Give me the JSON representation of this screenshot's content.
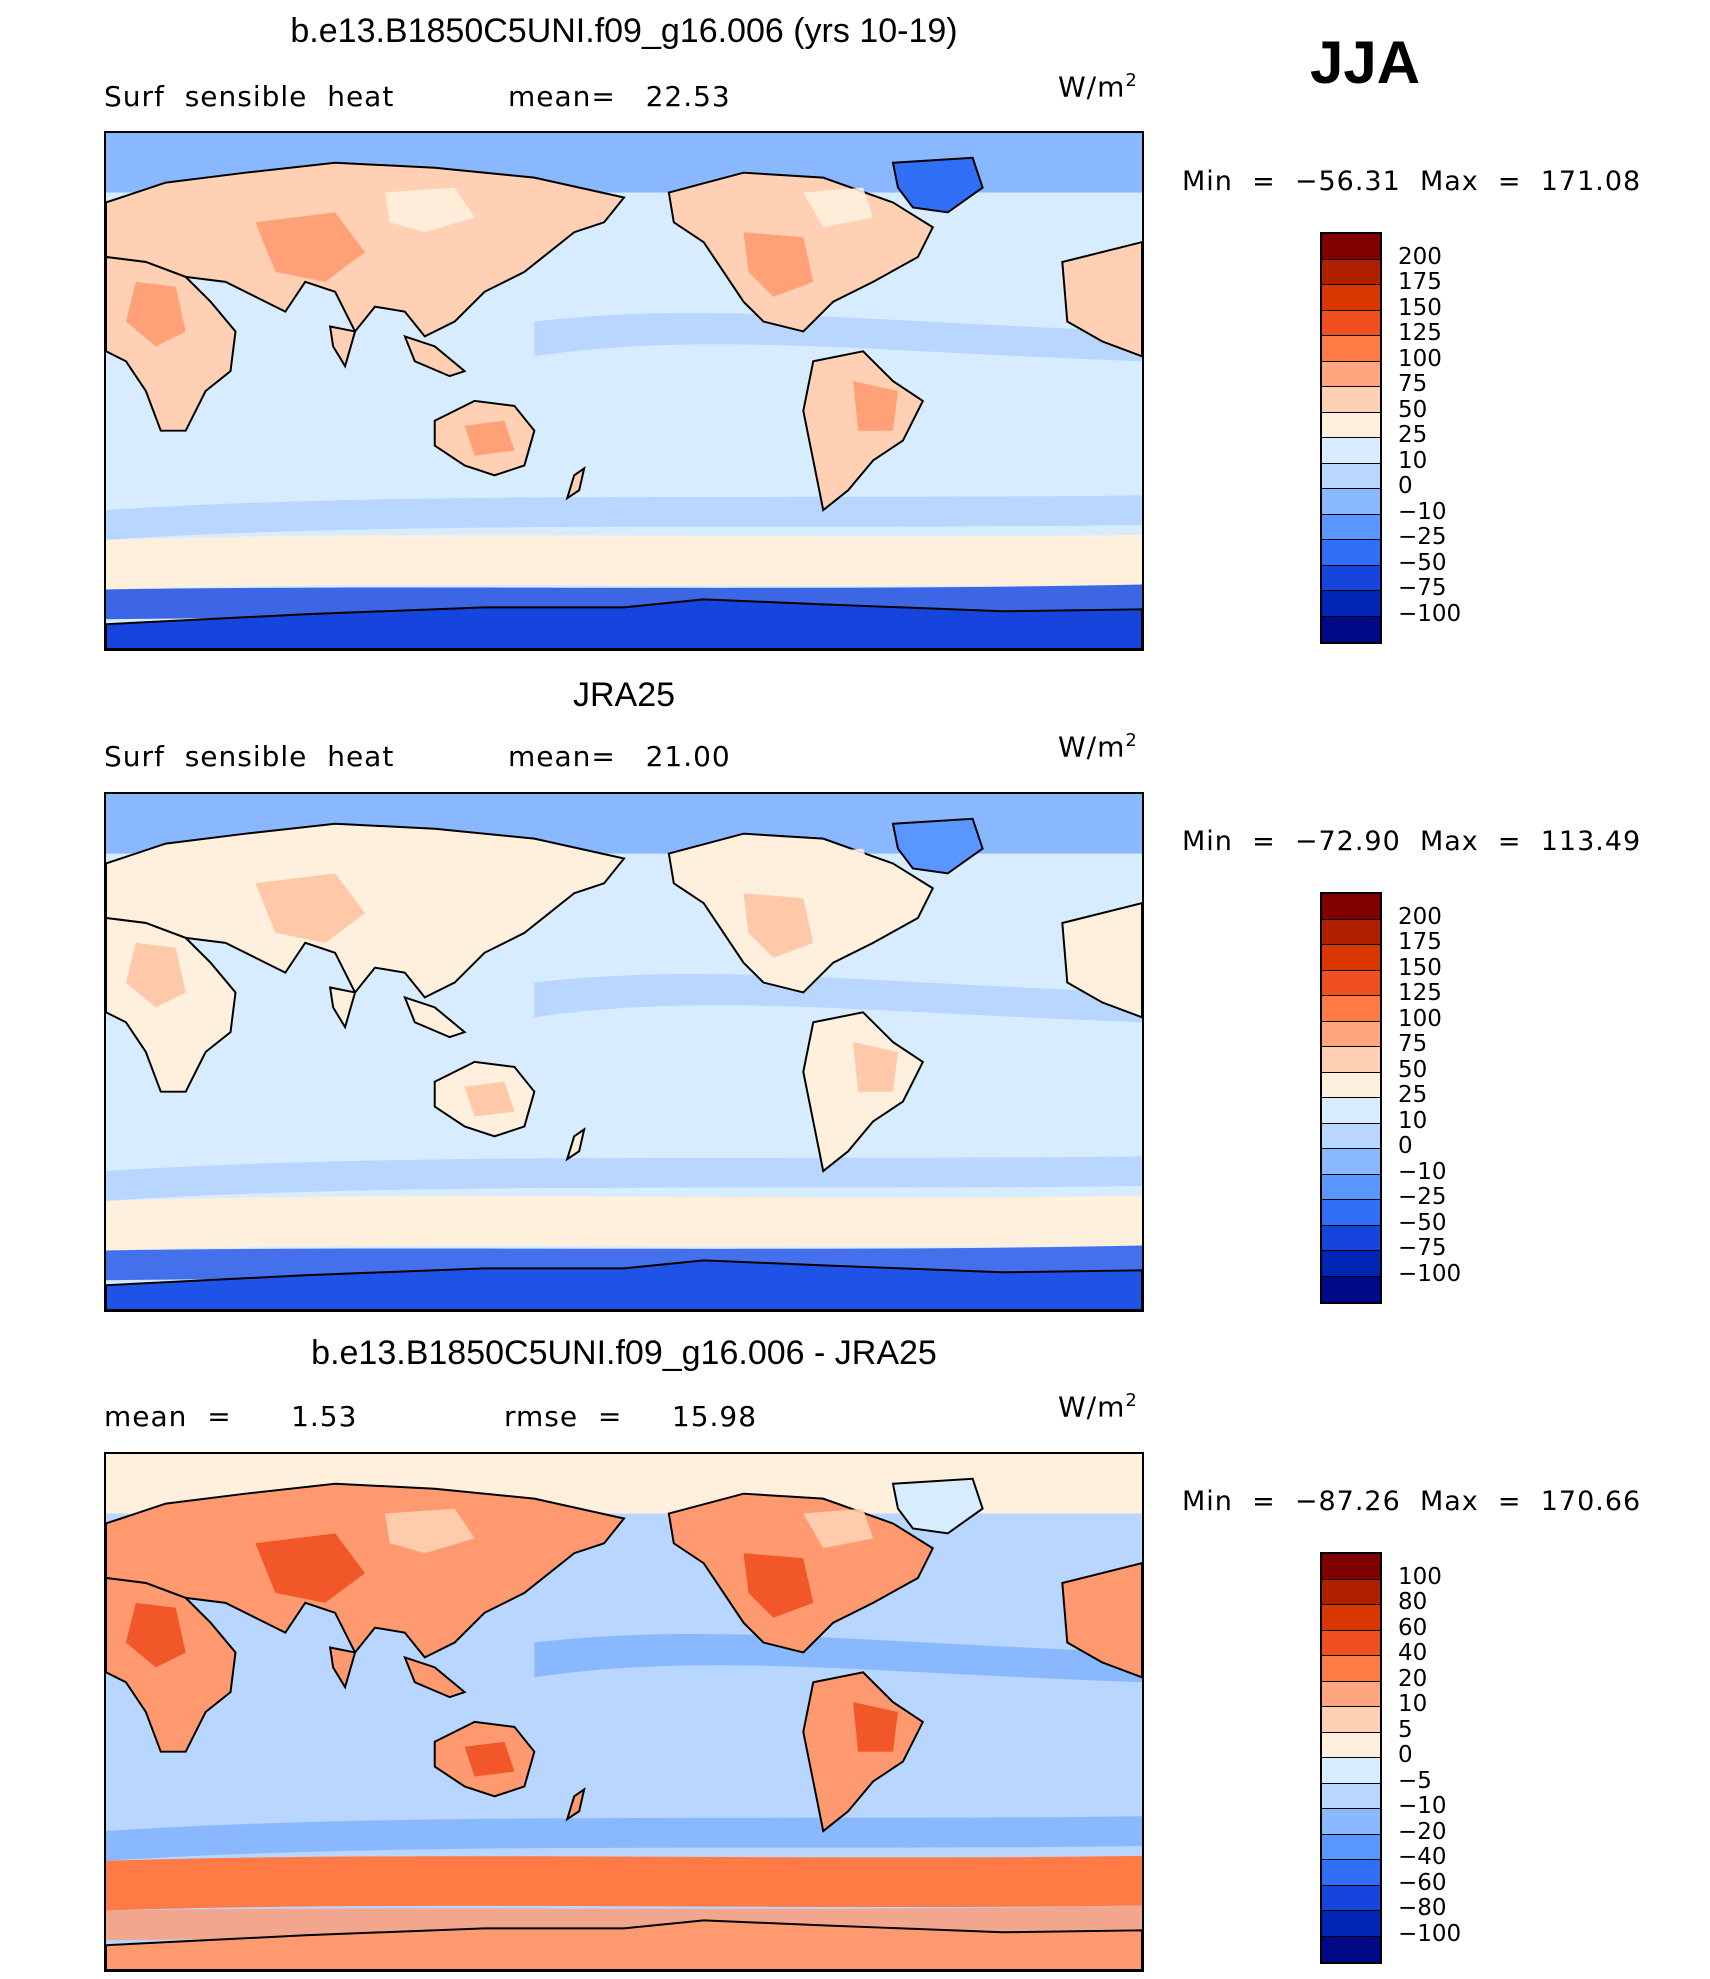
{
  "season": "JJA",
  "panels": [
    {
      "id": "model",
      "title": "b.e13.B1850C5UNI.f09_g16.006 (yrs 10-19)",
      "left_label": "Surf  sensible  heat",
      "mid_label": "mean=   22.53",
      "units": "W/m",
      "units_exp": "2",
      "minmax": "Min  =  −56.31  Max  =  171.08",
      "colorbar": {
        "levels": [
          "200",
          "175",
          "150",
          "125",
          "100",
          "75",
          "50",
          "25",
          "10",
          "0",
          "−10",
          "−25",
          "−50",
          "−75",
          "−100"
        ],
        "colors": [
          "#800000",
          "#b02000",
          "#d83800",
          "#f05020",
          "#ff7a45",
          "#ffa57f",
          "#ffd0b4",
          "#fff0de",
          "#d8ecff",
          "#b8d6ff",
          "#8ab8ff",
          "#5a96ff",
          "#2f6ef5",
          "#1545dd",
          "#0024b4",
          "#000a88"
        ]
      },
      "regions": {
        "land": "#ffd0b4",
        "land_hot": "#ff9a70",
        "land_cool": "#fff0de",
        "ocean": "#d8ecff",
        "ocean_band": "#b8d6ff",
        "north_ocean": "#8ab8ff",
        "greenland": "#2f6ef5",
        "south_band": "#fff0de",
        "antarctic": "#1545dd"
      }
    },
    {
      "id": "obs",
      "title": "JRA25",
      "left_label": "Surf  sensible  heat",
      "mid_label": "mean=   21.00",
      "units": "W/m",
      "units_exp": "2",
      "minmax": "Min  =  −72.90  Max  =  113.49",
      "colorbar": {
        "levels": [
          "200",
          "175",
          "150",
          "125",
          "100",
          "75",
          "50",
          "25",
          "10",
          "0",
          "−10",
          "−25",
          "−50",
          "−75",
          "−100"
        ],
        "colors": [
          "#800000",
          "#b02000",
          "#d83800",
          "#f05020",
          "#ff7a45",
          "#ffa57f",
          "#ffd0b4",
          "#fff0de",
          "#d8ecff",
          "#b8d6ff",
          "#8ab8ff",
          "#5a96ff",
          "#2f6ef5",
          "#1545dd",
          "#0024b4",
          "#000a88"
        ]
      },
      "regions": {
        "land": "#fff0de",
        "land_hot": "#ffc3a3",
        "land_cool": "#fff0de",
        "ocean": "#d8ecff",
        "ocean_band": "#b8d6ff",
        "north_ocean": "#8ab8ff",
        "greenland": "#5a96ff",
        "south_band": "#fff0de",
        "antarctic": "#1f52e6"
      }
    },
    {
      "id": "diff",
      "title": "b.e13.B1850C5UNI.f09_g16.006 - JRA25",
      "left_label": "mean  =      1.53",
      "mid_label": "rmse  =     15.98",
      "units": "W/m",
      "units_exp": "2",
      "minmax": "Min  =  −87.26  Max  =  170.66",
      "colorbar": {
        "levels": [
          "100",
          "80",
          "60",
          "40",
          "20",
          "10",
          "5",
          "0",
          "−5",
          "−10",
          "−20",
          "−40",
          "−60",
          "−80",
          "−100"
        ],
        "colors": [
          "#800000",
          "#b02000",
          "#d83800",
          "#f05020",
          "#ff7a45",
          "#ffa57f",
          "#ffd0b4",
          "#fff0de",
          "#d8ecff",
          "#b8d6ff",
          "#8ab8ff",
          "#5a96ff",
          "#2f6ef5",
          "#1545dd",
          "#0024b4",
          "#000a88"
        ]
      },
      "regions": {
        "land": "#ff9a70",
        "land_hot": "#f05020",
        "land_cool": "#ffd0b4",
        "ocean": "#b8d6ff",
        "ocean_band": "#8ab8ff",
        "north_ocean": "#fff0de",
        "greenland": "#d8ecff",
        "south_band": "#ff7a45",
        "antarctic": "#ff9a70"
      }
    }
  ]
}
